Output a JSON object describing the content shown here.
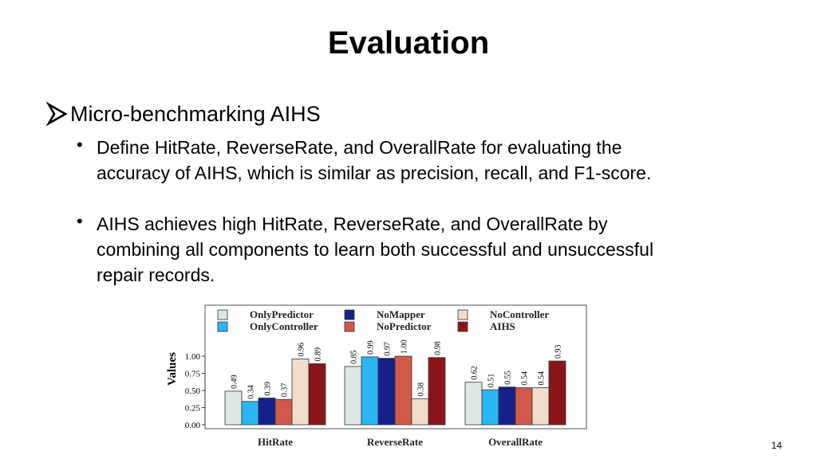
{
  "slide": {
    "title": "Evaluation",
    "level1": "Micro-benchmarking AIHS",
    "bullets": [
      "Define HitRate, ReverseRate, and OverallRate for evaluating the accuracy of AIHS, which is similar as precision, recall, and F1-score.",
      "AIHS achieves high HitRate, ReverseRate, and OverallRate by combining all components to learn both successful and unsuccessful repair records."
    ],
    "page_number": "14"
  },
  "chart_data": {
    "type": "bar",
    "categories": [
      "HitRate",
      "ReverseRate",
      "OverallRate"
    ],
    "ylabel": "Values",
    "ylim": [
      0,
      1
    ],
    "yticks": [
      "0.00",
      "0.25",
      "0.50",
      "0.75",
      "1.00"
    ],
    "legend_position": "top",
    "series": [
      {
        "name": "OnlyPredictor",
        "color": "#dde8e6",
        "values": [
          0.49,
          0.85,
          0.62
        ]
      },
      {
        "name": "OnlyController",
        "color": "#2bb5f2",
        "values": [
          0.34,
          0.99,
          0.51
        ]
      },
      {
        "name": "NoMapper",
        "color": "#16208a",
        "values": [
          0.39,
          0.97,
          0.55
        ]
      },
      {
        "name": "NoPredictor",
        "color": "#d0594a",
        "values": [
          0.37,
          1.0,
          0.54
        ]
      },
      {
        "name": "NoController",
        "color": "#f1ddcc",
        "values": [
          0.96,
          0.38,
          0.54
        ]
      },
      {
        "name": "AIHS",
        "color": "#8a1518",
        "values": [
          0.89,
          0.98,
          0.93
        ]
      }
    ],
    "data_labels": [
      [
        "0.49",
        "0.34",
        "0.39",
        "0.37",
        "0.96",
        "0.89"
      ],
      [
        "0.85",
        "0.99",
        "0.97",
        "1.00",
        "0.38",
        "0.98"
      ],
      [
        "0.62",
        "0.51",
        "0.55",
        "0.54",
        "0.54",
        "0.93"
      ]
    ]
  }
}
